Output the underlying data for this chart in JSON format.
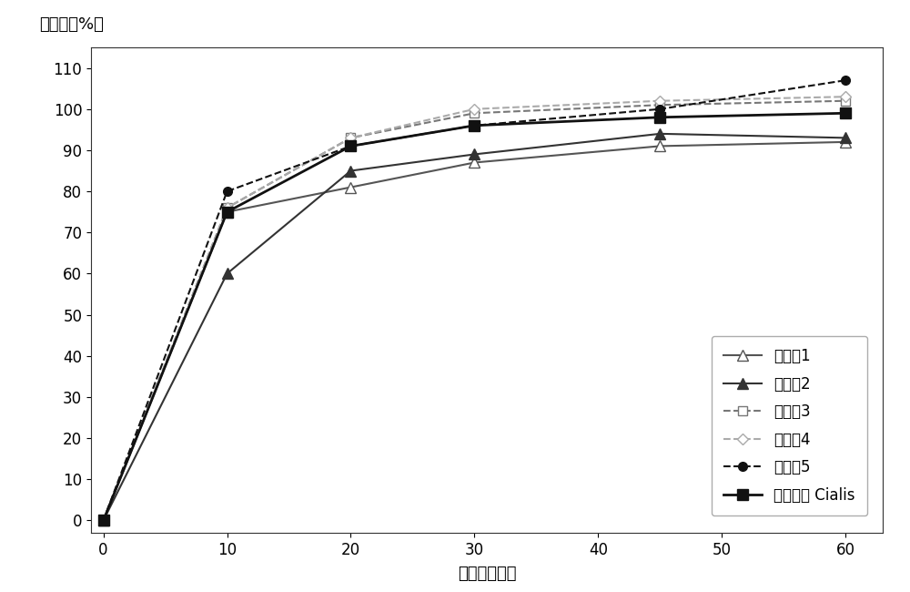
{
  "series": [
    {
      "label": "实施例1",
      "x": [
        0,
        10,
        20,
        30,
        45,
        60
      ],
      "y": [
        0,
        75,
        81,
        87,
        91,
        92
      ],
      "color": "#555555",
      "linestyle": "-",
      "marker": "^",
      "markerfacecolor": "white",
      "markeredgecolor": "#555555",
      "markersize": 8,
      "linewidth": 1.5
    },
    {
      "label": "实施例2",
      "x": [
        0,
        10,
        20,
        30,
        45,
        60
      ],
      "y": [
        0,
        60,
        85,
        89,
        94,
        93
      ],
      "color": "#333333",
      "linestyle": "-",
      "marker": "^",
      "markerfacecolor": "#333333",
      "markeredgecolor": "#333333",
      "markersize": 8,
      "linewidth": 1.5
    },
    {
      "label": "实施例3",
      "x": [
        0,
        10,
        20,
        30,
        45,
        60
      ],
      "y": [
        0,
        76,
        93,
        99,
        101,
        102
      ],
      "color": "#777777",
      "linestyle": "--",
      "marker": "s",
      "markerfacecolor": "white",
      "markeredgecolor": "#777777",
      "markersize": 7,
      "linewidth": 1.5
    },
    {
      "label": "实施例4",
      "x": [
        0,
        10,
        20,
        30,
        45,
        60
      ],
      "y": [
        0,
        76,
        93,
        100,
        102,
        103
      ],
      "color": "#aaaaaa",
      "linestyle": "--",
      "marker": "D",
      "markerfacecolor": "white",
      "markeredgecolor": "#aaaaaa",
      "markersize": 6,
      "linewidth": 1.5
    },
    {
      "label": "实施例5",
      "x": [
        0,
        10,
        20,
        30,
        45,
        60
      ],
      "y": [
        0,
        80,
        91,
        96,
        100,
        107
      ],
      "color": "#111111",
      "linestyle": "--",
      "marker": "o",
      "markerfacecolor": "#111111",
      "markeredgecolor": "#111111",
      "markersize": 7,
      "linewidth": 1.5
    },
    {
      "label": "市售药品 Cialis",
      "x": [
        0,
        10,
        20,
        30,
        45,
        60
      ],
      "y": [
        0,
        75,
        91,
        96,
        98,
        99
      ],
      "color": "#111111",
      "linestyle": "-",
      "marker": "s",
      "markerfacecolor": "#111111",
      "markeredgecolor": "#111111",
      "markersize": 8,
      "linewidth": 2.0
    }
  ],
  "xlabel": "时间（分钟）",
  "ylabel": "溶解率（%）",
  "xlim": [
    -1,
    63
  ],
  "ylim": [
    -3,
    115
  ],
  "xticks": [
    0,
    10,
    20,
    30,
    40,
    50,
    60
  ],
  "yticks": [
    0,
    10,
    20,
    30,
    40,
    50,
    60,
    70,
    80,
    90,
    100,
    110
  ],
  "background_color": "#ffffff",
  "title_fontsize": 13,
  "label_fontsize": 13,
  "tick_fontsize": 12,
  "legend_fontsize": 12
}
